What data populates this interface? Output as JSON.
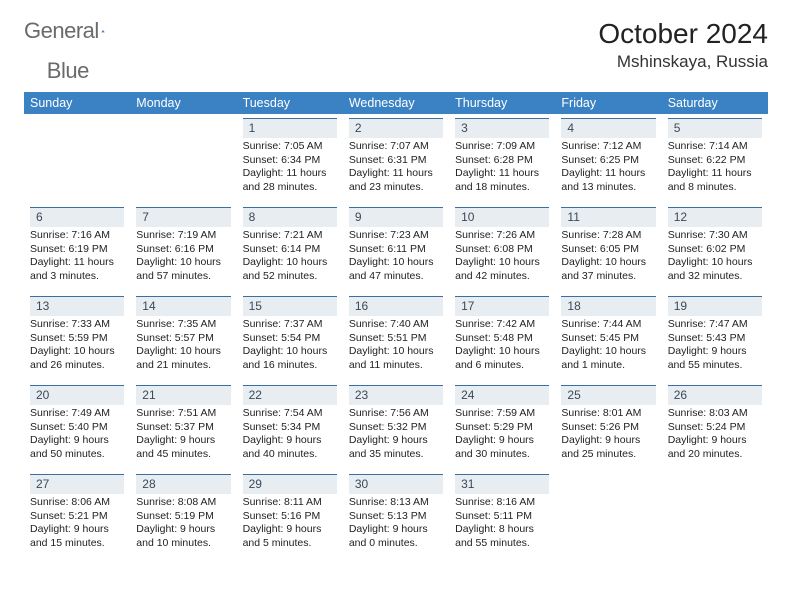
{
  "brand": {
    "name_a": "General",
    "name_b": "Blue"
  },
  "title": "October 2024",
  "location": "Mshinskaya, Russia",
  "weekdays": [
    "Sunday",
    "Monday",
    "Tuesday",
    "Wednesday",
    "Thursday",
    "Friday",
    "Saturday"
  ],
  "colors": {
    "header_bg": "#3b82c4",
    "header_text": "#ffffff",
    "daynum_bg": "#e8edf1",
    "daynum_rule": "#3b6fa0",
    "body_text": "#222222",
    "logo_gray": "#6a6a6a",
    "logo_blue": "#3b7ec1"
  },
  "weeks": [
    [
      {
        "n": "",
        "sr": "",
        "ss": "",
        "d1": "",
        "d2": ""
      },
      {
        "n": "",
        "sr": "",
        "ss": "",
        "d1": "",
        "d2": ""
      },
      {
        "n": "1",
        "sr": "Sunrise: 7:05 AM",
        "ss": "Sunset: 6:34 PM",
        "d1": "Daylight: 11 hours",
        "d2": "and 28 minutes."
      },
      {
        "n": "2",
        "sr": "Sunrise: 7:07 AM",
        "ss": "Sunset: 6:31 PM",
        "d1": "Daylight: 11 hours",
        "d2": "and 23 minutes."
      },
      {
        "n": "3",
        "sr": "Sunrise: 7:09 AM",
        "ss": "Sunset: 6:28 PM",
        "d1": "Daylight: 11 hours",
        "d2": "and 18 minutes."
      },
      {
        "n": "4",
        "sr": "Sunrise: 7:12 AM",
        "ss": "Sunset: 6:25 PM",
        "d1": "Daylight: 11 hours",
        "d2": "and 13 minutes."
      },
      {
        "n": "5",
        "sr": "Sunrise: 7:14 AM",
        "ss": "Sunset: 6:22 PM",
        "d1": "Daylight: 11 hours",
        "d2": "and 8 minutes."
      }
    ],
    [
      {
        "n": "6",
        "sr": "Sunrise: 7:16 AM",
        "ss": "Sunset: 6:19 PM",
        "d1": "Daylight: 11 hours",
        "d2": "and 3 minutes."
      },
      {
        "n": "7",
        "sr": "Sunrise: 7:19 AM",
        "ss": "Sunset: 6:16 PM",
        "d1": "Daylight: 10 hours",
        "d2": "and 57 minutes."
      },
      {
        "n": "8",
        "sr": "Sunrise: 7:21 AM",
        "ss": "Sunset: 6:14 PM",
        "d1": "Daylight: 10 hours",
        "d2": "and 52 minutes."
      },
      {
        "n": "9",
        "sr": "Sunrise: 7:23 AM",
        "ss": "Sunset: 6:11 PM",
        "d1": "Daylight: 10 hours",
        "d2": "and 47 minutes."
      },
      {
        "n": "10",
        "sr": "Sunrise: 7:26 AM",
        "ss": "Sunset: 6:08 PM",
        "d1": "Daylight: 10 hours",
        "d2": "and 42 minutes."
      },
      {
        "n": "11",
        "sr": "Sunrise: 7:28 AM",
        "ss": "Sunset: 6:05 PM",
        "d1": "Daylight: 10 hours",
        "d2": "and 37 minutes."
      },
      {
        "n": "12",
        "sr": "Sunrise: 7:30 AM",
        "ss": "Sunset: 6:02 PM",
        "d1": "Daylight: 10 hours",
        "d2": "and 32 minutes."
      }
    ],
    [
      {
        "n": "13",
        "sr": "Sunrise: 7:33 AM",
        "ss": "Sunset: 5:59 PM",
        "d1": "Daylight: 10 hours",
        "d2": "and 26 minutes."
      },
      {
        "n": "14",
        "sr": "Sunrise: 7:35 AM",
        "ss": "Sunset: 5:57 PM",
        "d1": "Daylight: 10 hours",
        "d2": "and 21 minutes."
      },
      {
        "n": "15",
        "sr": "Sunrise: 7:37 AM",
        "ss": "Sunset: 5:54 PM",
        "d1": "Daylight: 10 hours",
        "d2": "and 16 minutes."
      },
      {
        "n": "16",
        "sr": "Sunrise: 7:40 AM",
        "ss": "Sunset: 5:51 PM",
        "d1": "Daylight: 10 hours",
        "d2": "and 11 minutes."
      },
      {
        "n": "17",
        "sr": "Sunrise: 7:42 AM",
        "ss": "Sunset: 5:48 PM",
        "d1": "Daylight: 10 hours",
        "d2": "and 6 minutes."
      },
      {
        "n": "18",
        "sr": "Sunrise: 7:44 AM",
        "ss": "Sunset: 5:45 PM",
        "d1": "Daylight: 10 hours",
        "d2": "and 1 minute."
      },
      {
        "n": "19",
        "sr": "Sunrise: 7:47 AM",
        "ss": "Sunset: 5:43 PM",
        "d1": "Daylight: 9 hours",
        "d2": "and 55 minutes."
      }
    ],
    [
      {
        "n": "20",
        "sr": "Sunrise: 7:49 AM",
        "ss": "Sunset: 5:40 PM",
        "d1": "Daylight: 9 hours",
        "d2": "and 50 minutes."
      },
      {
        "n": "21",
        "sr": "Sunrise: 7:51 AM",
        "ss": "Sunset: 5:37 PM",
        "d1": "Daylight: 9 hours",
        "d2": "and 45 minutes."
      },
      {
        "n": "22",
        "sr": "Sunrise: 7:54 AM",
        "ss": "Sunset: 5:34 PM",
        "d1": "Daylight: 9 hours",
        "d2": "and 40 minutes."
      },
      {
        "n": "23",
        "sr": "Sunrise: 7:56 AM",
        "ss": "Sunset: 5:32 PM",
        "d1": "Daylight: 9 hours",
        "d2": "and 35 minutes."
      },
      {
        "n": "24",
        "sr": "Sunrise: 7:59 AM",
        "ss": "Sunset: 5:29 PM",
        "d1": "Daylight: 9 hours",
        "d2": "and 30 minutes."
      },
      {
        "n": "25",
        "sr": "Sunrise: 8:01 AM",
        "ss": "Sunset: 5:26 PM",
        "d1": "Daylight: 9 hours",
        "d2": "and 25 minutes."
      },
      {
        "n": "26",
        "sr": "Sunrise: 8:03 AM",
        "ss": "Sunset: 5:24 PM",
        "d1": "Daylight: 9 hours",
        "d2": "and 20 minutes."
      }
    ],
    [
      {
        "n": "27",
        "sr": "Sunrise: 8:06 AM",
        "ss": "Sunset: 5:21 PM",
        "d1": "Daylight: 9 hours",
        "d2": "and 15 minutes."
      },
      {
        "n": "28",
        "sr": "Sunrise: 8:08 AM",
        "ss": "Sunset: 5:19 PM",
        "d1": "Daylight: 9 hours",
        "d2": "and 10 minutes."
      },
      {
        "n": "29",
        "sr": "Sunrise: 8:11 AM",
        "ss": "Sunset: 5:16 PM",
        "d1": "Daylight: 9 hours",
        "d2": "and 5 minutes."
      },
      {
        "n": "30",
        "sr": "Sunrise: 8:13 AM",
        "ss": "Sunset: 5:13 PM",
        "d1": "Daylight: 9 hours",
        "d2": "and 0 minutes."
      },
      {
        "n": "31",
        "sr": "Sunrise: 8:16 AM",
        "ss": "Sunset: 5:11 PM",
        "d1": "Daylight: 8 hours",
        "d2": "and 55 minutes."
      },
      {
        "n": "",
        "sr": "",
        "ss": "",
        "d1": "",
        "d2": ""
      },
      {
        "n": "",
        "sr": "",
        "ss": "",
        "d1": "",
        "d2": ""
      }
    ]
  ]
}
